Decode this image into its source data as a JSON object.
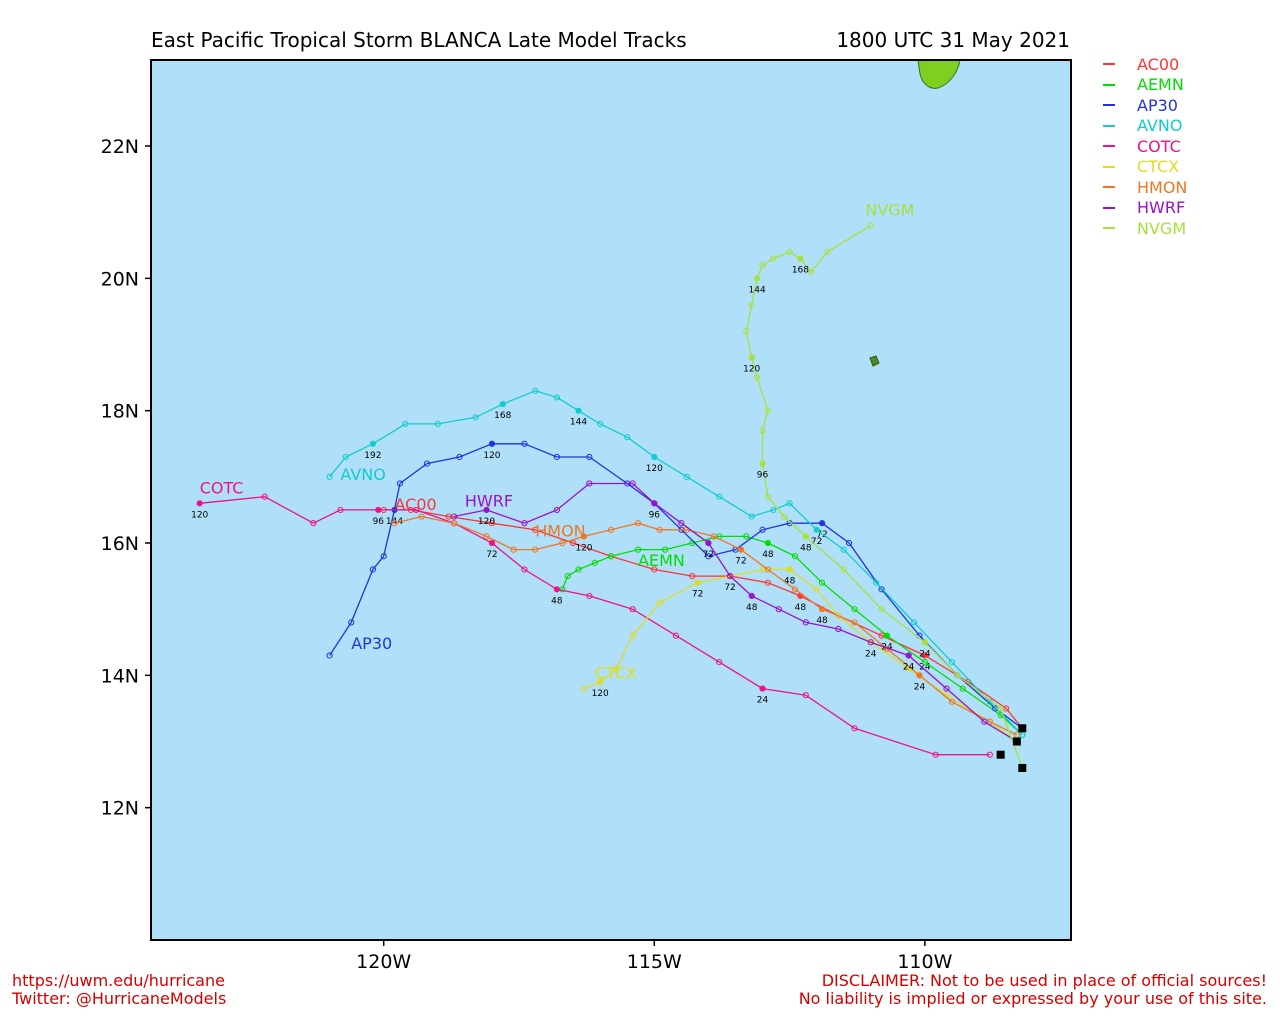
{
  "title": "East Pacific Tropical Storm BLANCA Late Model Tracks",
  "datetime": "1800 UTC 31 May 2021",
  "footer": {
    "url": "https://uwm.edu/hurricane",
    "twitter": "Twitter: @HurricaneModels",
    "disclaimer1": "DISCLAIMER: Not to be used in place of official sources!",
    "disclaimer2": "No liability is implied or expressed by your use of this site."
  },
  "colors": {
    "ocean": "#b0e0f9",
    "land": "#7ed020",
    "frame": "#000000"
  },
  "chart_data": {
    "type": "map",
    "xlim": [
      -124.3,
      -107.3
    ],
    "ylim": [
      10.0,
      23.3
    ],
    "xticks": [
      {
        "value": -120,
        "label": "120W"
      },
      {
        "value": -115,
        "label": "115W"
      },
      {
        "value": -110,
        "label": "110W"
      }
    ],
    "yticks": [
      {
        "value": 12,
        "label": "12N"
      },
      {
        "value": 14,
        "label": "14N"
      },
      {
        "value": 16,
        "label": "16N"
      },
      {
        "value": 18,
        "label": "18N"
      },
      {
        "value": 20,
        "label": "20N"
      },
      {
        "value": 22,
        "label": "22N"
      }
    ],
    "series": [
      {
        "name": "AC00",
        "color": "#ff3333",
        "lon": [
          -108.2,
          -108.5,
          -109.2,
          -110.0,
          -110.8,
          -111.6,
          -112.3,
          -112.9,
          -113.6,
          -114.3,
          -115.0,
          -115.8,
          -116.5,
          -117.2,
          -118.0,
          -118.8,
          -119.5,
          -120.0
        ],
        "lat": [
          13.2,
          13.5,
          13.9,
          14.3,
          14.6,
          14.9,
          15.2,
          15.4,
          15.5,
          15.5,
          15.6,
          15.8,
          16.0,
          16.2,
          16.3,
          16.4,
          16.5,
          16.5
        ],
        "hours": [
          {
            "i": 3,
            "label": "24"
          },
          {
            "i": 6,
            "label": "48"
          },
          {
            "i": 8,
            "label": "72"
          }
        ],
        "label_pos": [
          -119.8,
          16.5
        ]
      },
      {
        "name": "AEMN",
        "color": "#00dd00",
        "lon": [
          -108.2,
          -108.6,
          -109.3,
          -110.0,
          -110.7,
          -111.3,
          -111.9,
          -112.4,
          -112.9,
          -113.3,
          -113.8,
          -114.3,
          -114.8,
          -115.3,
          -115.8,
          -116.1,
          -116.4,
          -116.6,
          -116.7
        ],
        "lat": [
          13.1,
          13.4,
          13.8,
          14.2,
          14.6,
          15.0,
          15.4,
          15.8,
          16.0,
          16.1,
          16.1,
          16.0,
          15.9,
          15.9,
          15.8,
          15.7,
          15.6,
          15.5,
          15.3
        ],
        "hours": [
          {
            "i": 4,
            "label": "24"
          },
          {
            "i": 8,
            "label": "48"
          }
        ],
        "label_pos": [
          -115.3,
          15.65
        ]
      },
      {
        "name": "AP30",
        "color": "#2233dd",
        "lon": [
          -108.2,
          -108.7,
          -109.4,
          -110.1,
          -110.8,
          -111.4,
          -111.9,
          -112.5,
          -113.0,
          -113.5,
          -114.0,
          -114.5,
          -115.0,
          -115.5,
          -116.2,
          -116.8,
          -117.4,
          -118.0,
          -118.6,
          -119.2,
          -119.7,
          -119.8,
          -120.0,
          -120.2,
          -120.6,
          -121.0
        ],
        "lat": [
          13.2,
          13.5,
          14.0,
          14.6,
          15.3,
          16.0,
          16.3,
          16.3,
          16.2,
          15.9,
          15.8,
          16.2,
          16.6,
          16.9,
          17.3,
          17.3,
          17.5,
          17.5,
          17.3,
          17.2,
          16.9,
          16.5,
          15.8,
          15.6,
          14.8,
          14.3
        ],
        "hours": [
          {
            "i": 6,
            "label": "72"
          },
          {
            "i": 17,
            "label": "120"
          },
          {
            "i": 21,
            "label": "144"
          }
        ],
        "label_pos": [
          -120.6,
          14.4
        ]
      },
      {
        "name": "AVNO",
        "color": "#11cccc",
        "lon": [
          -108.2,
          -108.8,
          -109.5,
          -110.2,
          -110.9,
          -111.5,
          -112.0,
          -112.5,
          -112.8,
          -113.2,
          -113.8,
          -114.4,
          -115.0,
          -115.5,
          -116.0,
          -116.4,
          -116.8,
          -117.2,
          -117.8,
          -118.3,
          -119.0,
          -119.6,
          -120.2,
          -120.7,
          -121.0
        ],
        "lat": [
          13.1,
          13.6,
          14.2,
          14.8,
          15.4,
          15.9,
          16.2,
          16.6,
          16.5,
          16.4,
          16.7,
          17.0,
          17.3,
          17.6,
          17.8,
          18.0,
          18.2,
          18.3,
          18.1,
          17.9,
          17.8,
          17.8,
          17.5,
          17.3,
          17.0
        ],
        "hours": [
          {
            "i": 6,
            "label": "72"
          },
          {
            "i": 12,
            "label": "120"
          },
          {
            "i": 15,
            "label": "144"
          },
          {
            "i": 18,
            "label": "168"
          },
          {
            "i": 22,
            "label": "192"
          }
        ],
        "label_pos": [
          -120.8,
          16.95
        ]
      },
      {
        "name": "COTC",
        "color": "#ee1188",
        "lon": [
          -108.8,
          -109.8,
          -111.3,
          -112.2,
          -113.0,
          -113.8,
          -114.6,
          -115.4,
          -116.2,
          -116.8,
          -117.4,
          -118.0,
          -118.7,
          -119.4,
          -120.1,
          -120.8,
          -121.3,
          -122.2,
          -123.4
        ],
        "lat": [
          12.8,
          12.8,
          13.2,
          13.7,
          13.8,
          14.2,
          14.6,
          15.0,
          15.2,
          15.3,
          15.6,
          16.0,
          16.3,
          16.5,
          16.5,
          16.5,
          16.3,
          16.7,
          16.6
        ],
        "hours": [
          {
            "i": 4,
            "label": "24"
          },
          {
            "i": 9,
            "label": "48"
          },
          {
            "i": 11,
            "label": "72"
          },
          {
            "i": 14,
            "label": "96"
          },
          {
            "i": 18,
            "label": "120"
          }
        ],
        "label_pos": [
          -123.4,
          16.75
        ]
      },
      {
        "name": "CTCX",
        "color": "#dddd22",
        "lon": [
          -108.3,
          -108.8,
          -109.6,
          -110.3,
          -111.0,
          -111.6,
          -112.0,
          -112.5,
          -113.0,
          -113.6,
          -114.2,
          -114.9,
          -115.4,
          -115.7,
          -116.0,
          -116.3
        ],
        "lat": [
          13.0,
          13.3,
          13.7,
          14.1,
          14.5,
          14.9,
          15.3,
          15.6,
          15.6,
          15.5,
          15.4,
          15.1,
          14.6,
          14.1,
          13.9,
          13.8
        ],
        "hours": [
          {
            "i": 4,
            "label": "24"
          },
          {
            "i": 7,
            "label": "48"
          },
          {
            "i": 10,
            "label": "72"
          },
          {
            "i": 14,
            "label": "120"
          }
        ],
        "label_pos": [
          -116.1,
          13.95
        ]
      },
      {
        "name": "HMON",
        "color": "#ee7722",
        "lon": [
          -108.3,
          -108.8,
          -109.5,
          -110.1,
          -110.7,
          -111.3,
          -111.9,
          -112.4,
          -112.9,
          -113.4,
          -113.9,
          -114.4,
          -114.9,
          -115.3,
          -115.8,
          -116.3,
          -116.7,
          -117.2,
          -117.6,
          -118.1,
          -118.7,
          -119.3,
          -119.8
        ],
        "lat": [
          13.1,
          13.3,
          13.6,
          14.0,
          14.4,
          14.8,
          15.0,
          15.3,
          15.6,
          15.9,
          16.1,
          16.2,
          16.2,
          16.3,
          16.2,
          16.1,
          16.0,
          15.9,
          15.9,
          16.1,
          16.3,
          16.4,
          16.3
        ],
        "hours": [
          {
            "i": 3,
            "label": "24"
          },
          {
            "i": 6,
            "label": "48"
          },
          {
            "i": 9,
            "label": "72"
          },
          {
            "i": 15,
            "label": "120"
          }
        ],
        "label_pos": [
          -117.2,
          16.1
        ]
      },
      {
        "name": "HWRF",
        "color": "#9911cc",
        "lon": [
          -108.3,
          -108.9,
          -109.6,
          -110.3,
          -111.0,
          -111.6,
          -112.2,
          -112.7,
          -113.2,
          -113.6,
          -114.0,
          -114.5,
          -115.0,
          -115.4,
          -116.2,
          -116.8,
          -117.4,
          -118.1,
          -118.7
        ],
        "lat": [
          13.0,
          13.3,
          13.8,
          14.3,
          14.5,
          14.7,
          14.8,
          15.0,
          15.2,
          15.5,
          16.0,
          16.3,
          16.6,
          16.9,
          16.9,
          16.5,
          16.3,
          16.5,
          16.4
        ],
        "hours": [
          {
            "i": 3,
            "label": "24"
          },
          {
            "i": 8,
            "label": "48"
          },
          {
            "i": 10,
            "label": "72"
          },
          {
            "i": 12,
            "label": "96"
          },
          {
            "i": 17,
            "label": "120"
          }
        ],
        "label_pos": [
          -118.5,
          16.55
        ]
      },
      {
        "name": "NVGM",
        "color": "#a8e03a",
        "lon": [
          -108.2,
          -108.6,
          -109.4,
          -110.0,
          -110.8,
          -111.5,
          -112.2,
          -112.6,
          -112.9,
          -113.0,
          -113.0,
          -112.9,
          -113.1,
          -113.2,
          -113.3,
          -113.2,
          -113.1,
          -113.0,
          -112.8,
          -112.5,
          -112.3,
          -112.1,
          -111.8,
          -111.0
        ],
        "lat": [
          12.6,
          13.5,
          14.0,
          14.5,
          15.0,
          15.6,
          16.1,
          16.4,
          16.7,
          17.2,
          17.7,
          18.0,
          18.5,
          18.8,
          19.2,
          19.6,
          20.0,
          20.2,
          20.3,
          20.4,
          20.3,
          20.1,
          20.4,
          20.8
        ],
        "hours": [
          {
            "i": 3,
            "label": "24"
          },
          {
            "i": 6,
            "label": "48"
          },
          {
            "i": 9,
            "label": "96"
          },
          {
            "i": 13,
            "label": "120"
          },
          {
            "i": 16,
            "label": "144"
          },
          {
            "i": 20,
            "label": "168"
          }
        ],
        "label_pos": [
          -111.1,
          20.95
        ]
      }
    ]
  }
}
